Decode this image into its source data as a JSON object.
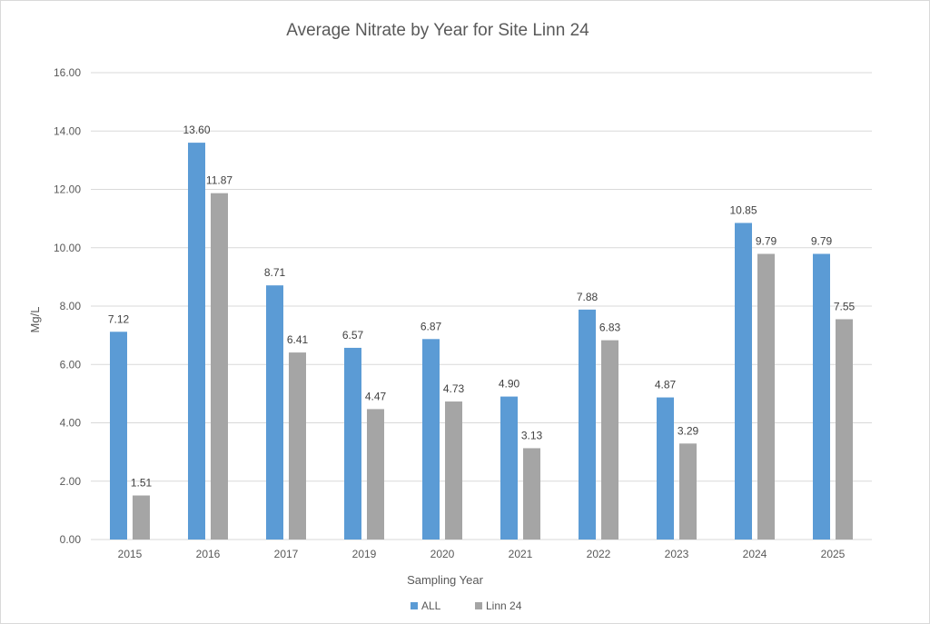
{
  "chart_data": {
    "type": "bar",
    "title": "Average Nitrate by Year for Site Linn 24",
    "xlabel": "Sampling Year",
    "ylabel": "Mg/L",
    "ylim": [
      0,
      16
    ],
    "yticks": [
      "0.00",
      "2.00",
      "4.00",
      "6.00",
      "8.00",
      "10.00",
      "12.00",
      "14.00",
      "16.00"
    ],
    "grid": true,
    "legend_position": "bottom",
    "categories": [
      "2015",
      "2016",
      "2017",
      "2019",
      "2020",
      "2021",
      "2022",
      "2023",
      "2024",
      "2025"
    ],
    "series": [
      {
        "name": "ALL",
        "color": "#5b9bd5",
        "values": [
          7.12,
          13.6,
          8.71,
          6.57,
          6.87,
          4.9,
          7.88,
          4.87,
          10.85,
          9.79
        ],
        "labels": [
          "7.12",
          "13.60",
          "8.71",
          "6.57",
          "6.87",
          "4.90",
          "7.88",
          "4.87",
          "10.85",
          "9.79"
        ]
      },
      {
        "name": "Linn 24",
        "color": "#a5a5a5",
        "values": [
          1.51,
          11.87,
          6.41,
          4.47,
          4.73,
          3.13,
          6.83,
          3.29,
          9.79,
          7.55
        ],
        "labels": [
          "1.51",
          "11.87",
          "6.41",
          "4.47",
          "4.73",
          "3.13",
          "6.83",
          "3.29",
          "9.79",
          "7.55"
        ]
      }
    ]
  }
}
